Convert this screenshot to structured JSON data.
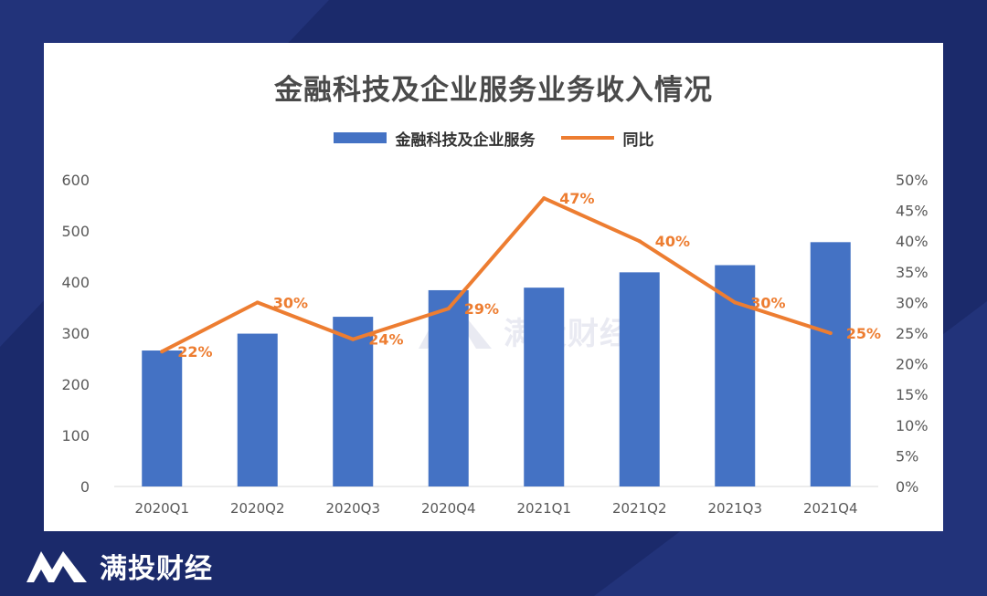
{
  "brand": {
    "name": "满投财经",
    "logo_icon": "m-logo-icon",
    "watermark_text": "满投财经"
  },
  "colors": {
    "background": "#1b2a6b",
    "bar": "#4472c4",
    "line": "#ed7d31"
  },
  "chart_data": {
    "type": "bar",
    "title": "金融科技及企业服务业务收入情况",
    "legend_position": "top",
    "grid": false,
    "categories": [
      "2020Q1",
      "2020Q2",
      "2020Q3",
      "2020Q4",
      "2021Q1",
      "2021Q2",
      "2021Q3",
      "2021Q4"
    ],
    "series": [
      {
        "name": "金融科技及企业服务",
        "type": "bar",
        "axis": "left",
        "values": [
          266,
          299,
          332,
          384,
          389,
          419,
          433,
          478
        ]
      },
      {
        "name": "同比",
        "type": "line",
        "axis": "right",
        "values": [
          22,
          30,
          24,
          29,
          47,
          40,
          30,
          25
        ],
        "labels": [
          "22%",
          "30%",
          "24%",
          "29%",
          "47%",
          "40%",
          "30%",
          "25%"
        ]
      }
    ],
    "y_left": {
      "ylim": [
        0,
        600
      ],
      "ticks": [
        "0",
        "100",
        "200",
        "300",
        "400",
        "500",
        "600"
      ]
    },
    "y_right": {
      "ylim": [
        0,
        50
      ],
      "ticks": [
        "0%",
        "5%",
        "10%",
        "15%",
        "20%",
        "25%",
        "30%",
        "35%",
        "40%",
        "45%",
        "50%"
      ]
    }
  }
}
